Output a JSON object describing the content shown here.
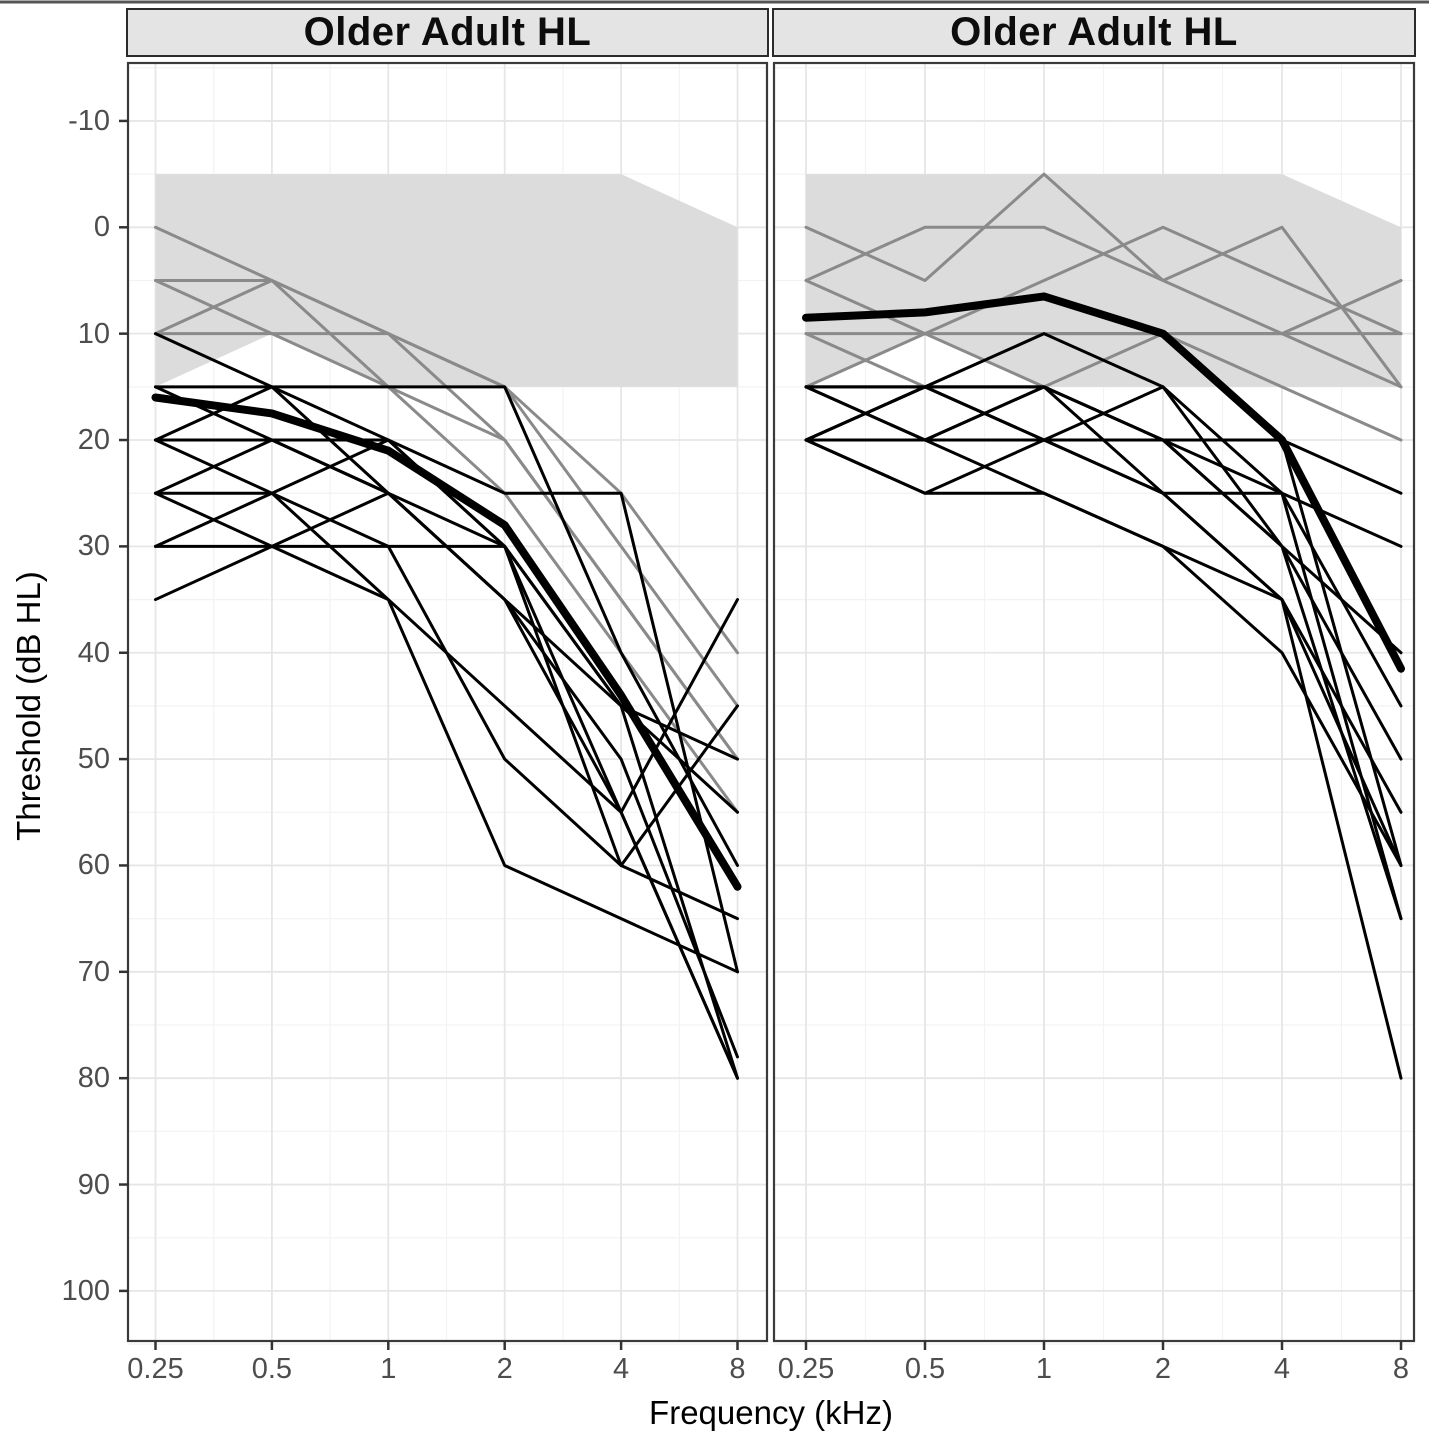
{
  "chart_data": {
    "type": "line",
    "description": "Faceted audiogram: individual hearing thresholds (thin lines), group mean (thick line), and shaded normal-hearing range band, for two panels both labelled Older Adult HL",
    "x": {
      "label": "Frequency (kHz)",
      "values_khz": [
        0.25,
        0.5,
        1,
        2,
        4,
        8
      ],
      "tick_labels": [
        "0.25",
        "0.5",
        "1",
        "2",
        "4",
        "8"
      ],
      "scale": "log2"
    },
    "y": {
      "label": "Threshold (dB HL)",
      "ticks": [
        -10,
        0,
        10,
        20,
        30,
        40,
        50,
        60,
        70,
        80,
        90,
        100
      ],
      "minor_step": 5,
      "range_db": [
        -15,
        105
      ],
      "inverted": true,
      "grid": true
    },
    "colors": {
      "band": "#dcdcdc",
      "gray_line": "#8a8a8a",
      "black_line": "#000000",
      "mean_line": "#000000",
      "grid_major": "#e6e6e6",
      "grid_minor": "#f3f3f3",
      "panel_border": "#3a3a3a",
      "tick_mark": "#333333",
      "tick_text": "#4d4d4d",
      "header_bg": "#e4e4e4",
      "header_border": "#2b2b2b"
    },
    "facets": [
      {
        "title": "Older Adult HL",
        "normal_band": {
          "top_db": [
            -5,
            -5,
            -5,
            -5,
            -5,
            0
          ],
          "bottom_db": [
            15,
            10,
            15,
            15,
            15,
            15
          ]
        },
        "gray_subjects": [
          [
            0,
            5,
            10,
            20,
            35,
            50
          ],
          [
            5,
            5,
            10,
            15,
            30,
            45
          ],
          [
            5,
            10,
            15,
            25,
            40,
            55
          ],
          [
            10,
            5,
            15,
            20,
            35,
            50
          ],
          [
            10,
            10,
            10,
            15,
            25,
            40
          ]
        ],
        "black_subjects": [
          [
            15,
            15,
            15,
            15,
            40,
            60
          ],
          [
            20,
            20,
            20,
            25,
            25,
            70
          ],
          [
            20,
            25,
            20,
            30,
            45,
            55
          ],
          [
            25,
            20,
            25,
            35,
            45,
            50
          ],
          [
            25,
            30,
            30,
            30,
            45,
            80
          ],
          [
            30,
            25,
            35,
            45,
            55,
            80
          ],
          [
            30,
            30,
            25,
            35,
            50,
            78
          ],
          [
            35,
            30,
            35,
            60,
            65,
            70
          ],
          [
            10,
            15,
            20,
            30,
            55,
            80
          ],
          [
            15,
            20,
            25,
            30,
            60,
            45
          ],
          [
            20,
            15,
            25,
            35,
            55,
            35
          ],
          [
            25,
            25,
            30,
            50,
            60,
            65
          ]
        ],
        "mean": [
          16,
          17.5,
          21,
          28,
          44,
          62
        ]
      },
      {
        "title": "Older Adult HL",
        "normal_band": {
          "top_db": [
            -5,
            -5,
            -5,
            -5,
            -5,
            0
          ],
          "bottom_db": [
            15,
            10,
            15,
            15,
            15,
            15
          ]
        },
        "gray_subjects": [
          [
            10,
            10,
            10,
            10,
            10,
            10
          ],
          [
            0,
            5,
            -5,
            5,
            10,
            15
          ],
          [
            5,
            0,
            0,
            5,
            0,
            15
          ],
          [
            10,
            15,
            10,
            10,
            10,
            5
          ],
          [
            15,
            10,
            5,
            0,
            5,
            10
          ],
          [
            5,
            10,
            15,
            10,
            15,
            20
          ]
        ],
        "black_subjects": [
          [
            20,
            20,
            20,
            20,
            20,
            60
          ],
          [
            20,
            15,
            20,
            20,
            25,
            65
          ],
          [
            20,
            20,
            15,
            20,
            30,
            50
          ],
          [
            15,
            15,
            10,
            15,
            25,
            45
          ],
          [
            20,
            25,
            20,
            25,
            35,
            80
          ],
          [
            15,
            20,
            15,
            20,
            30,
            65
          ],
          [
            20,
            20,
            25,
            30,
            40,
            60
          ],
          [
            15,
            15,
            15,
            25,
            35,
            55
          ],
          [
            20,
            15,
            20,
            15,
            30,
            40
          ],
          [
            15,
            20,
            20,
            25,
            25,
            30
          ],
          [
            20,
            15,
            15,
            20,
            20,
            25
          ],
          [
            20,
            25,
            25,
            30,
            35,
            60
          ]
        ],
        "mean": [
          8.5,
          8,
          6.5,
          10,
          20,
          41.5
        ]
      }
    ]
  }
}
